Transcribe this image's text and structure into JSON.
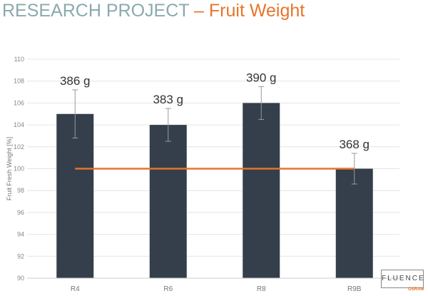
{
  "header": {
    "title_main": "RESEARCH PROJECT",
    "title_accent": "– Fruit Weight"
  },
  "logo": {
    "text": "FLUENCE",
    "sub": "OSRAM"
  },
  "chart_data": {
    "type": "bar",
    "categories": [
      "R4",
      "R6",
      "R8",
      "R9B"
    ],
    "values": [
      105,
      104,
      106,
      100
    ],
    "error_low": [
      102.8,
      102.5,
      104.5,
      98.6
    ],
    "error_high": [
      107.2,
      105.5,
      107.5,
      101.4
    ],
    "data_labels": [
      "386 g",
      "383 g",
      "390 g",
      "368 g"
    ],
    "reference_line": {
      "value": 100,
      "color": "#e8742b"
    },
    "ylabel": "Fruit Fresh Weight [%]",
    "xlabel": "",
    "ylim": [
      90,
      110
    ],
    "yticks": [
      90,
      92,
      94,
      96,
      98,
      100,
      102,
      104,
      106,
      108,
      110
    ],
    "grid": true,
    "bar_color": "#343f4b"
  }
}
